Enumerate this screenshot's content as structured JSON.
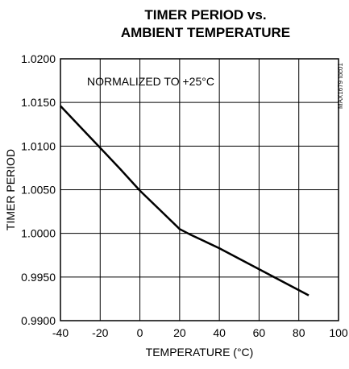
{
  "chart_data": {
    "type": "line",
    "title_line1": "TIMER PERIOD vs.",
    "title_line2": "AMBIENT TEMPERATURE",
    "annotation": "NORMALIZED TO +25°C",
    "figure_code": "MAX1679 toc01",
    "xlabel": "TEMPERATURE (°C)",
    "ylabel": "TIMER PERIOD",
    "xlim": [
      -40,
      100
    ],
    "ylim": [
      0.99,
      1.02
    ],
    "x_ticks": [
      "-40",
      "-20",
      "0",
      "20",
      "40",
      "60",
      "80",
      "100"
    ],
    "y_ticks": [
      "0.9900",
      "0.9950",
      "1.0000",
      "1.0050",
      "1.0100",
      "1.0150",
      "1.0200"
    ],
    "grid": true,
    "series": [
      {
        "x": [
          -40,
          -30,
          -20,
          -10,
          0,
          10,
          20,
          25,
          40,
          60,
          85
        ],
        "y": [
          1.0146,
          1.0122,
          1.0098,
          1.0074,
          1.0049,
          1.0027,
          1.0005,
          0.9999,
          0.9983,
          0.9959,
          0.9929
        ]
      }
    ],
    "line_color": "#000000"
  }
}
